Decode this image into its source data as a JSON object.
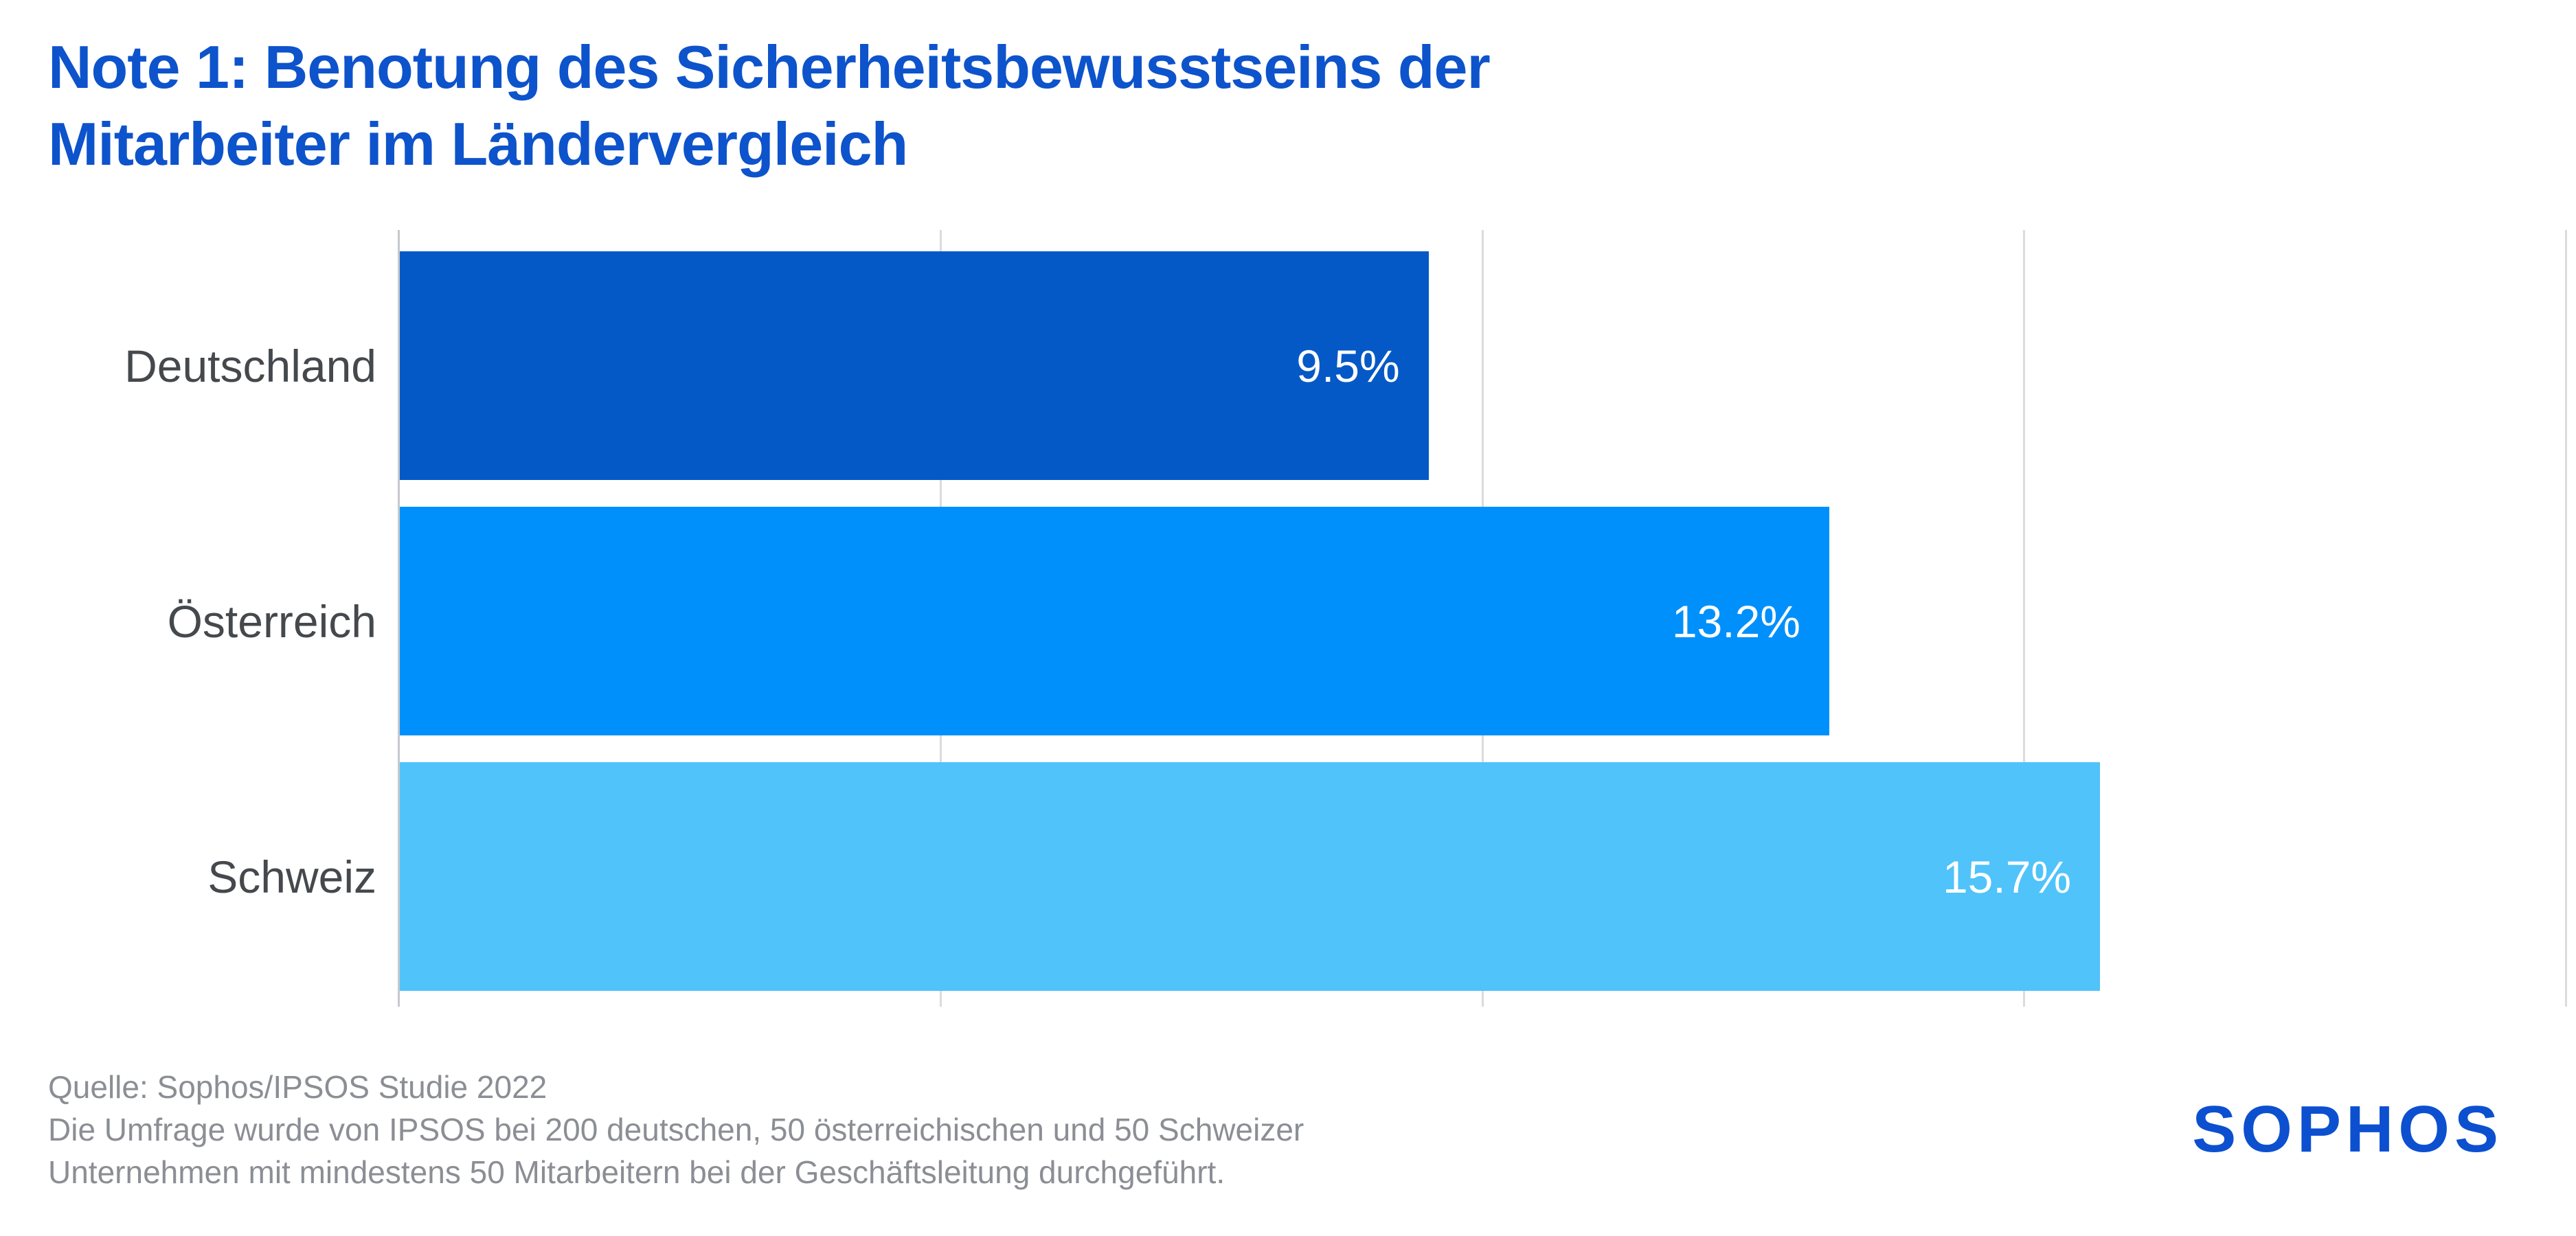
{
  "header": {
    "title_line1": "Note 1: Benotung des Sicherheitsbewusstseins der",
    "title_line2": "Mitarbeiter im Ländervergleich"
  },
  "chart_data": {
    "type": "bar",
    "orientation": "horizontal",
    "title": "Note 1: Benotung des Sicherheitsbewusstseins der Mitarbeiter im Ländervergleich",
    "categories": [
      "Deutschland",
      "Österreich",
      "Schweiz"
    ],
    "values": [
      9.5,
      13.2,
      15.7
    ],
    "value_labels": [
      "9.5%",
      "13.2%",
      "15.7%"
    ],
    "bar_colors": [
      "#0459c7",
      "#0090fc",
      "#4fc3fa"
    ],
    "xlabel": "",
    "ylabel": "",
    "xlim": [
      0,
      20
    ],
    "gridline_values": [
      0,
      5,
      10,
      15,
      20
    ],
    "grid": "vertical gridlines only, no tick labels",
    "legend": "none",
    "value_label_position": "inside bar end, white text"
  },
  "footer": {
    "source": "Quelle: Sophos/IPSOS Studie 2022",
    "note_line1": "Die Umfrage wurde von IPSOS bei 200 deutschen, 50 österreichischen und 50 Schweizer",
    "note_line2": "Unternehmen mit mindestens 50 Mitarbeitern bei der Geschäftsleitung durchgeführt."
  },
  "branding": {
    "logo_text": "SOPHOS"
  },
  "colors": {
    "background": "#ffffff",
    "title_blue": "#0d53cb",
    "logo_blue": "#0c50d0",
    "category_label_gray": "#45484c",
    "footer_gray": "#8b8e94",
    "gridline": "#d9dbde",
    "axis_line": "#c6c9ce",
    "value_text": "#ffffff"
  }
}
